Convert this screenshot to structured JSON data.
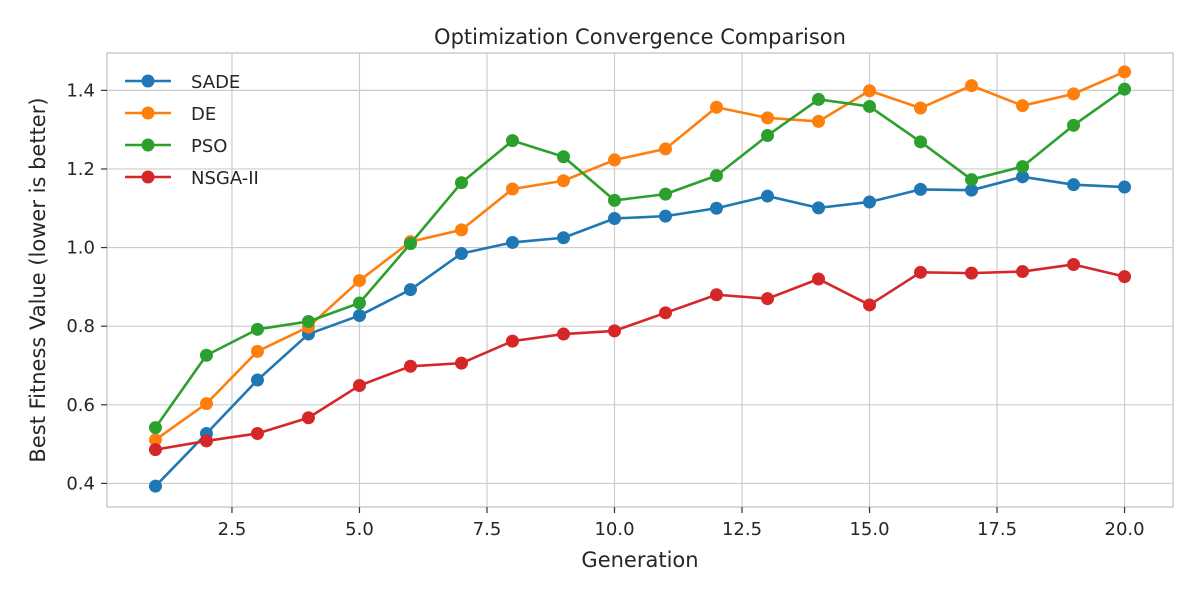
{
  "chart_data": {
    "type": "line",
    "title": "Optimization Convergence Comparison",
    "xlabel": "Generation",
    "ylabel": "Best Fitness Value (lower is better)",
    "xlim": [
      0.05,
      20.95
    ],
    "ylim": [
      0.34,
      1.495
    ],
    "xticks": [
      2.5,
      5.0,
      7.5,
      10.0,
      12.5,
      15.0,
      17.5,
      20.0
    ],
    "yticks": [
      0.4,
      0.6,
      0.8,
      1.0,
      1.2,
      1.4
    ],
    "grid": true,
    "legend_position": "top-left",
    "x": [
      1,
      2,
      3,
      4,
      5,
      6,
      7,
      8,
      9,
      10,
      11,
      12,
      13,
      14,
      15,
      16,
      17,
      18,
      19,
      20
    ],
    "series": [
      {
        "name": "SADE",
        "color": "#1f77b4",
        "values": [
          0.393,
          0.527,
          0.663,
          0.78,
          0.827,
          0.893,
          0.985,
          1.013,
          1.025,
          1.074,
          1.08,
          1.1,
          1.131,
          1.101,
          1.116,
          1.148,
          1.146,
          1.18,
          1.16,
          1.154
        ]
      },
      {
        "name": "DE",
        "color": "#ff7f0e",
        "values": [
          0.511,
          0.603,
          0.736,
          0.798,
          0.916,
          1.015,
          1.045,
          1.149,
          1.17,
          1.223,
          1.251,
          1.357,
          1.33,
          1.321,
          1.399,
          1.355,
          1.412,
          1.361,
          1.391,
          1.447
        ]
      },
      {
        "name": "PSO",
        "color": "#2ca02c",
        "values": [
          0.542,
          0.726,
          0.792,
          0.812,
          0.859,
          1.01,
          1.165,
          1.272,
          1.231,
          1.12,
          1.136,
          1.183,
          1.285,
          1.377,
          1.359,
          1.269,
          1.173,
          1.206,
          1.311,
          1.403
        ]
      },
      {
        "name": "NSGA-II",
        "color": "#d62728",
        "values": [
          0.486,
          0.508,
          0.527,
          0.567,
          0.649,
          0.698,
          0.706,
          0.762,
          0.78,
          0.788,
          0.834,
          0.88,
          0.87,
          0.92,
          0.854,
          0.937,
          0.935,
          0.939,
          0.957,
          0.926
        ]
      }
    ]
  }
}
